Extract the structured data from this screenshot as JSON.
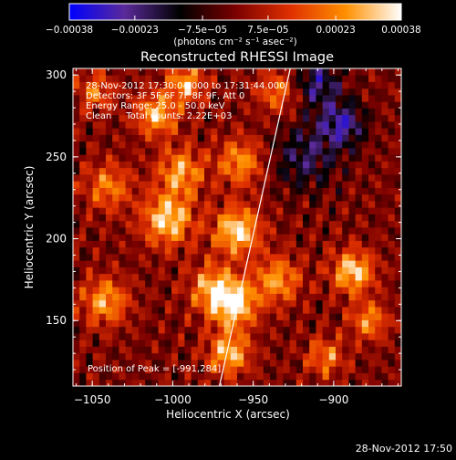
{
  "chart_data": {
    "type": "heatmap",
    "title": "Reconstructed RHESSI Image",
    "xlabel": "Heliocentric X (arcsec)",
    "ylabel": "Heliocentric Y (arcsec)",
    "xlim": [
      -1062,
      -858
    ],
    "ylim": [
      110,
      304
    ],
    "x_ticks": [
      -1050,
      -1000,
      -950,
      -900
    ],
    "x_tick_labels": [
      "−1050",
      "−1000",
      "−950",
      "−900"
    ],
    "y_ticks": [
      150,
      200,
      250,
      300
    ],
    "y_tick_labels": [
      "150",
      "200",
      "250",
      "300"
    ],
    "colorbar": {
      "min": -0.00038,
      "max": 0.00038,
      "ticks": [
        -0.00038,
        -0.00023,
        -7.5e-05,
        7.5e-05,
        0.00023,
        0.00038
      ],
      "tick_labels": [
        "−0.00038",
        "−0.00023",
        "−7.5e−05",
        "7.5e−05",
        "0.00023",
        "0.00038"
      ],
      "unit_label": "(photons cm⁻² s⁻¹ asec⁻²)",
      "colormap": [
        "#0000ff",
        "#5a2a9a",
        "#000000",
        "#7a0000",
        "#e03000",
        "#ff9000",
        "#ffffff"
      ]
    },
    "annotations": [
      "28-Nov-2012 17:30:04.000 to 17:31:44.000",
      "Detectors: 3F 5F 6F 7F 8F 9F, Att 0",
      "Energy Range: 25.0 - 50.0 keV",
      "Clean     Total counts: 2.22E+03"
    ],
    "peak_label": "Position of Peak = [-991,284]",
    "limb_line": {
      "x": [
        -971,
        -927
      ],
      "y": [
        110,
        304
      ]
    },
    "sources": [
      {
        "x": -1003,
        "y": 212,
        "peak": 0.00034,
        "sigma": 11
      },
      {
        "x": -1010,
        "y": 276,
        "peak": 0.0003,
        "sigma": 9
      },
      {
        "x": -995,
        "y": 241,
        "peak": 0.00027,
        "sigma": 10
      },
      {
        "x": -992,
        "y": 295,
        "peak": 0.00028,
        "sigma": 8
      },
      {
        "x": -960,
        "y": 205,
        "peak": 0.00036,
        "sigma": 10
      },
      {
        "x": -958,
        "y": 247,
        "peak": 0.00025,
        "sigma": 10
      },
      {
        "x": -962,
        "y": 160,
        "peak": 0.00036,
        "sigma": 10
      },
      {
        "x": -975,
        "y": 170,
        "peak": 0.00027,
        "sigma": 10
      },
      {
        "x": -965,
        "y": 130,
        "peak": 0.00031,
        "sigma": 9
      },
      {
        "x": -1042,
        "y": 162,
        "peak": 0.00027,
        "sigma": 10
      },
      {
        "x": -1040,
        "y": 232,
        "peak": 0.00022,
        "sigma": 10
      },
      {
        "x": -1048,
        "y": 290,
        "peak": 0.0002,
        "sigma": 8
      },
      {
        "x": -935,
        "y": 175,
        "peak": 0.00026,
        "sigma": 10
      },
      {
        "x": -935,
        "y": 290,
        "peak": 0.0002,
        "sigma": 9
      },
      {
        "x": -888,
        "y": 180,
        "peak": 0.00034,
        "sigma": 9
      },
      {
        "x": -878,
        "y": 150,
        "peak": 0.00024,
        "sigma": 8
      },
      {
        "x": -905,
        "y": 128,
        "peak": 0.00022,
        "sigma": 8
      },
      {
        "x": -918,
        "y": 250,
        "peak": -0.00018,
        "sigma": 14
      },
      {
        "x": -895,
        "y": 270,
        "peak": -0.00026,
        "sigma": 10
      },
      {
        "x": -910,
        "y": 295,
        "peak": -0.00022,
        "sigma": 10
      }
    ]
  },
  "footer": {
    "timestamp": "28-Nov-2012 17:50"
  }
}
